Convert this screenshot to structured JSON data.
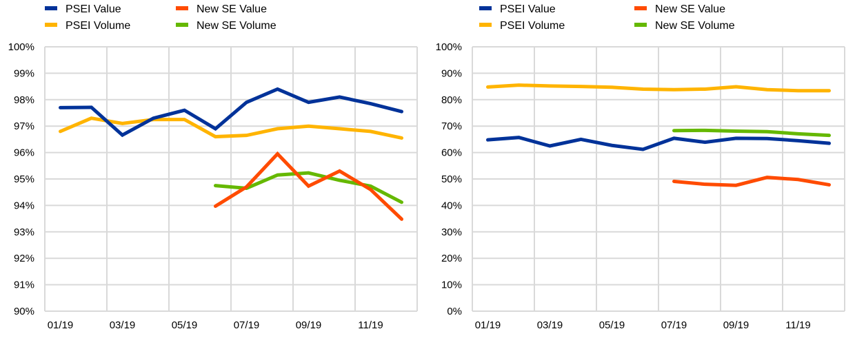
{
  "colors": {
    "psei_value": "#003299",
    "new_se_value": "#ff4b00",
    "psei_volume": "#ffb400",
    "new_se_volume": "#65b800",
    "grid": "#d9d9d9"
  },
  "chart_data": [
    {
      "type": "line",
      "title": "",
      "xlabel": "",
      "ylabel": "",
      "ylim": [
        0.9,
        1.0
      ],
      "grid": true,
      "legend_position": "top",
      "x": [
        "01/19",
        "02/19",
        "03/19",
        "04/19",
        "05/19",
        "06/19",
        "07/19",
        "08/19",
        "09/19",
        "10/19",
        "11/19",
        "12/19"
      ],
      "x_tick_labels": [
        "01/19",
        "03/19",
        "05/19",
        "07/19",
        "09/19",
        "11/19"
      ],
      "y_tick_labels": [
        "100%",
        "99%",
        "98%",
        "97%",
        "96%",
        "95%",
        "94%",
        "93%",
        "92%",
        "91%",
        "90%"
      ],
      "legend": [
        "PSEI Value",
        "New SE Value",
        "PSEI Volume",
        "New SE Volume"
      ],
      "series": [
        {
          "name": "PSEI Value",
          "color_key": "psei_value",
          "values": [
            0.977,
            0.9771,
            0.9666,
            0.973,
            0.976,
            0.969,
            0.979,
            0.984,
            0.979,
            0.981,
            0.9785,
            0.9755
          ]
        },
        {
          "name": "New SE Value",
          "color_key": "new_se_value",
          "values": [
            null,
            null,
            null,
            null,
            null,
            0.9397,
            0.947,
            0.9595,
            0.9473,
            0.953,
            0.946,
            0.9348
          ]
        },
        {
          "name": "PSEI Volume",
          "color_key": "psei_volume",
          "values": [
            0.968,
            0.973,
            0.971,
            0.9725,
            0.9725,
            0.966,
            0.9665,
            0.969,
            0.97,
            0.969,
            0.968,
            0.9655
          ]
        },
        {
          "name": "New SE Volume",
          "color_key": "new_se_volume",
          "values": [
            null,
            null,
            null,
            null,
            null,
            0.9475,
            0.9465,
            0.9515,
            0.9523,
            0.9495,
            0.9473,
            0.9412
          ]
        }
      ]
    },
    {
      "type": "line",
      "title": "",
      "xlabel": "",
      "ylabel": "",
      "ylim": [
        0,
        1.0
      ],
      "grid": true,
      "legend_position": "top",
      "x": [
        "01/19",
        "02/19",
        "03/19",
        "04/19",
        "05/19",
        "06/19",
        "07/19",
        "08/19",
        "09/19",
        "10/19",
        "11/19",
        "12/19"
      ],
      "x_tick_labels": [
        "01/19",
        "03/19",
        "05/19",
        "07/19",
        "09/19",
        "11/19"
      ],
      "y_tick_labels": [
        "100%",
        "90%",
        "80%",
        "70%",
        "60%",
        "50%",
        "40%",
        "30%",
        "20%",
        "10%",
        "0%"
      ],
      "legend": [
        "PSEI Value",
        "New SE Value",
        "PSEI Volume",
        "New SE Volume"
      ],
      "series": [
        {
          "name": "PSEI Value",
          "color_key": "psei_value",
          "values": [
            0.648,
            0.657,
            0.625,
            0.65,
            0.627,
            0.612,
            0.654,
            0.639,
            0.654,
            0.653,
            0.645,
            0.635
          ]
        },
        {
          "name": "New SE Value",
          "color_key": "new_se_value",
          "values": [
            null,
            null,
            null,
            null,
            null,
            null,
            0.491,
            0.48,
            0.476,
            0.506,
            0.498,
            0.478
          ]
        },
        {
          "name": "PSEI Volume",
          "color_key": "psei_volume",
          "values": [
            0.848,
            0.855,
            0.852,
            0.85,
            0.847,
            0.84,
            0.838,
            0.84,
            0.849,
            0.838,
            0.834,
            0.834
          ]
        },
        {
          "name": "New SE Volume",
          "color_key": "new_se_volume",
          "values": [
            null,
            null,
            null,
            null,
            null,
            null,
            0.683,
            0.684,
            0.681,
            0.679,
            0.671,
            0.665
          ]
        }
      ]
    }
  ]
}
